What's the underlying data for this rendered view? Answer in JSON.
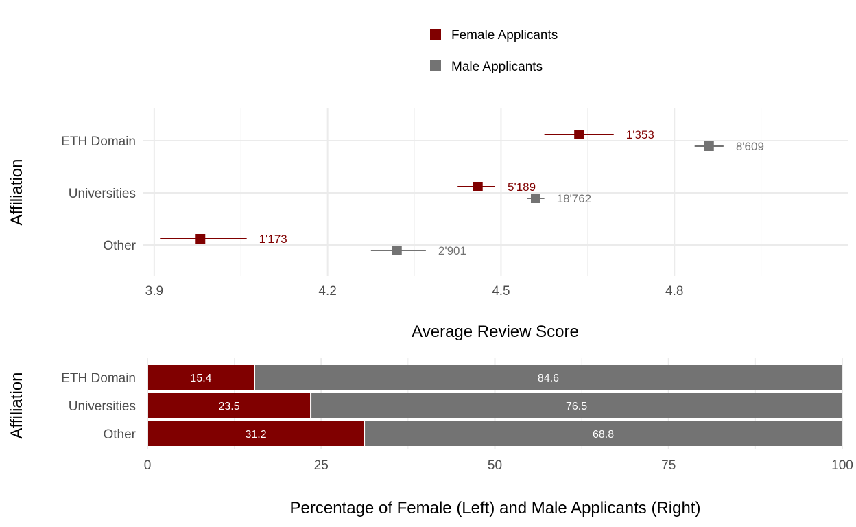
{
  "chart_data": [
    {
      "type": "scatter",
      "subtype": "point-range",
      "xlabel": "Average Review Score",
      "ylabel": "Affiliation",
      "categories": [
        "ETH Domain",
        "Universities",
        "Other"
      ],
      "xlim": [
        3.88,
        5.1
      ],
      "xticks": [
        3.9,
        4.2,
        4.5,
        4.8
      ],
      "xtick_labels": [
        "3.9",
        "4.2",
        "4.5",
        "4.8"
      ],
      "grid": true,
      "legend": {
        "position": "top",
        "entries": [
          {
            "label": "Female Applicants",
            "color": "#800000"
          },
          {
            "label": "Male Applicants",
            "color": "#737373"
          }
        ]
      },
      "series": [
        {
          "name": "Female Applicants",
          "color": "#800000",
          "points": [
            {
              "category": "ETH Domain",
              "mean": 4.635,
              "low": 4.575,
              "high": 4.695,
              "count_label": "1'353"
            },
            {
              "category": "Universities",
              "mean": 4.46,
              "low": 4.425,
              "high": 4.49,
              "count_label": "5'189"
            },
            {
              "category": "Other",
              "mean": 3.98,
              "low": 3.91,
              "high": 4.06,
              "count_label": "1'173"
            }
          ]
        },
        {
          "name": "Male Applicants",
          "color": "#737373",
          "points": [
            {
              "category": "ETH Domain",
              "mean": 4.86,
              "low": 4.835,
              "high": 4.885,
              "count_label": "8'609"
            },
            {
              "category": "Universities",
              "mean": 4.56,
              "low": 4.545,
              "high": 4.575,
              "count_label": "18'762"
            },
            {
              "category": "Other",
              "mean": 4.32,
              "low": 4.275,
              "high": 4.37,
              "count_label": "2'901"
            }
          ]
        }
      ]
    },
    {
      "type": "bar",
      "orientation": "horizontal",
      "stacked": true,
      "xlabel": "Percentage of Female (Left) and Male Applicants (Right)",
      "ylabel": "Affiliation",
      "categories": [
        "ETH Domain",
        "Universities",
        "Other"
      ],
      "xlim": [
        0,
        100
      ],
      "xticks": [
        0,
        25,
        50,
        75,
        100
      ],
      "xtick_labels": [
        "0",
        "25",
        "50",
        "75",
        "100"
      ],
      "grid": true,
      "series": [
        {
          "name": "Female Applicants",
          "color": "#800000",
          "values": [
            15.4,
            23.5,
            31.2
          ],
          "labels": [
            "15.4",
            "23.5",
            "31.2"
          ]
        },
        {
          "name": "Male Applicants",
          "color": "#737373",
          "values": [
            84.6,
            76.5,
            68.8
          ],
          "labels": [
            "84.6",
            "76.5",
            "68.8"
          ]
        }
      ]
    }
  ]
}
